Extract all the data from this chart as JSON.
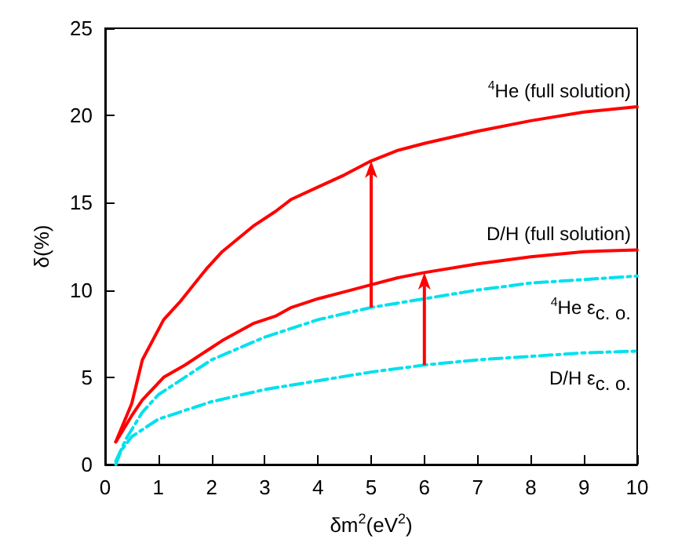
{
  "chart_data": {
    "type": "line",
    "xlabel": "δm$^{2}$(eV$^{2}$)",
    "ylabel": "δ(%)",
    "xlim": [
      0,
      10
    ],
    "xticks": [
      0,
      1,
      2,
      3,
      4,
      5,
      6,
      7,
      8,
      9,
      10
    ],
    "ylim": [
      0,
      25
    ],
    "yticks": [
      0,
      5,
      10,
      15,
      20,
      25
    ],
    "grid": false,
    "legend": false,
    "marker": "none",
    "series": [
      {
        "name": "$^{4}$He (full solution)",
        "color": "#ff0000",
        "line_style": "solid",
        "x": [
          0.2,
          0.5,
          0.7,
          1.1,
          1.4,
          1.9,
          2.2,
          2.8,
          3.2,
          3.5,
          4,
          4.5,
          5,
          5.5,
          6,
          7,
          8,
          9,
          10
        ],
        "values": [
          1.3,
          3.5,
          6,
          8.3,
          9.3,
          11.2,
          12.2,
          13.7,
          14.5,
          15.2,
          15.9,
          16.6,
          17.4,
          18,
          18.4,
          19.1,
          19.7,
          20.2,
          20.5
        ]
      },
      {
        "name": "D/H (full solution)",
        "color": "#ff0000",
        "line_style": "solid",
        "x": [
          0.2,
          0.5,
          0.7,
          1.1,
          1.5,
          2,
          2.2,
          2.8,
          3.2,
          3.5,
          4,
          4.5,
          5,
          5.5,
          6,
          7,
          8,
          9,
          10
        ],
        "values": [
          1.3,
          2.8,
          3.7,
          5,
          5.7,
          6.7,
          7.1,
          8.1,
          8.5,
          9,
          9.5,
          9.9,
          10.3,
          10.7,
          11,
          11.5,
          11.9,
          12.2,
          12.3
        ]
      },
      {
        "name": "$^{4}$He ε$_{c. o.}$",
        "color": "#00e0ee",
        "line_style": "dashed",
        "x": [
          0.2,
          0.4,
          0.7,
          1,
          1.5,
          2,
          3,
          4,
          5,
          6,
          7,
          8,
          9,
          10
        ],
        "values": [
          0.2,
          1.5,
          3,
          4,
          5,
          6,
          7.3,
          8.3,
          9,
          9.5,
          10,
          10.4,
          10.6,
          10.8
        ]
      },
      {
        "name": "D/H ε$_{c. o.}$",
        "color": "#00e0ee",
        "line_style": "dashed",
        "x": [
          0.2,
          0.3,
          0.5,
          1,
          1.5,
          2,
          3,
          4,
          5,
          6,
          7,
          8,
          9,
          10
        ],
        "values": [
          0,
          0.8,
          1.6,
          2.6,
          3.1,
          3.6,
          4.3,
          4.8,
          5.3,
          5.7,
          6,
          6.2,
          6.4,
          6.5
        ]
      }
    ]
  }
}
